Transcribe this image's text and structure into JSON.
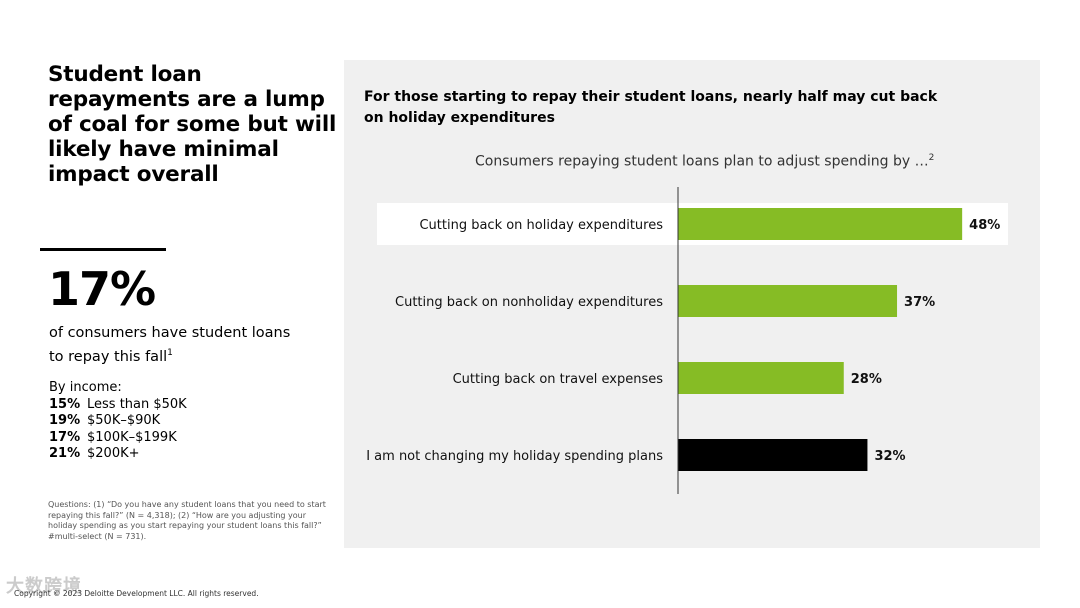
{
  "left": {
    "headline": "Student loan repayments are a lump of coal for some but will likely have minimal impact overall",
    "big_stat": "17%",
    "stat_desc": "of consumers have student loans to repay this fall",
    "stat_note": "1",
    "income_title": "By income:",
    "income_rows": [
      {
        "pct": "15%",
        "label": "Less than $50K"
      },
      {
        "pct": "19%",
        "label": "$50K–$90K"
      },
      {
        "pct": "17%",
        "label": "$100K–$199K"
      },
      {
        "pct": "21%",
        "label": "$200K+"
      }
    ],
    "questions": "Questions: (1) “Do you have any student loans that you need to start repaying this fall?” (N = 4,318); (2) “How are you adjusting your holiday spending as you start repaying your student loans this fall?” #multi-select (N = 731).",
    "copyright": "Copyright © 2023 Deloitte Development LLC. All rights reserved.",
    "watermark": "大数跨境"
  },
  "panel": {
    "title": "For those starting to repay their student loans, nearly half may cut back on holiday expenditures"
  },
  "chart_data": {
    "type": "bar",
    "orientation": "horizontal",
    "title": "Consumers repaying student loans plan to adjust spending by …",
    "title_note": "2",
    "categories": [
      "Cutting back on holiday expenditures",
      "Cutting back on nonholiday expenditures",
      "Cutting back on travel expenses",
      "I am not changing my holiday spending plans"
    ],
    "values": [
      48,
      37,
      28,
      32
    ],
    "value_labels": [
      "48%",
      "37%",
      "28%",
      "32%"
    ],
    "colors": [
      "#86bc25",
      "#86bc25",
      "#86bc25",
      "#000000"
    ],
    "highlight_index": 0,
    "xlim": [
      0,
      100
    ],
    "unit": "%",
    "grid": false,
    "legend": "none"
  }
}
